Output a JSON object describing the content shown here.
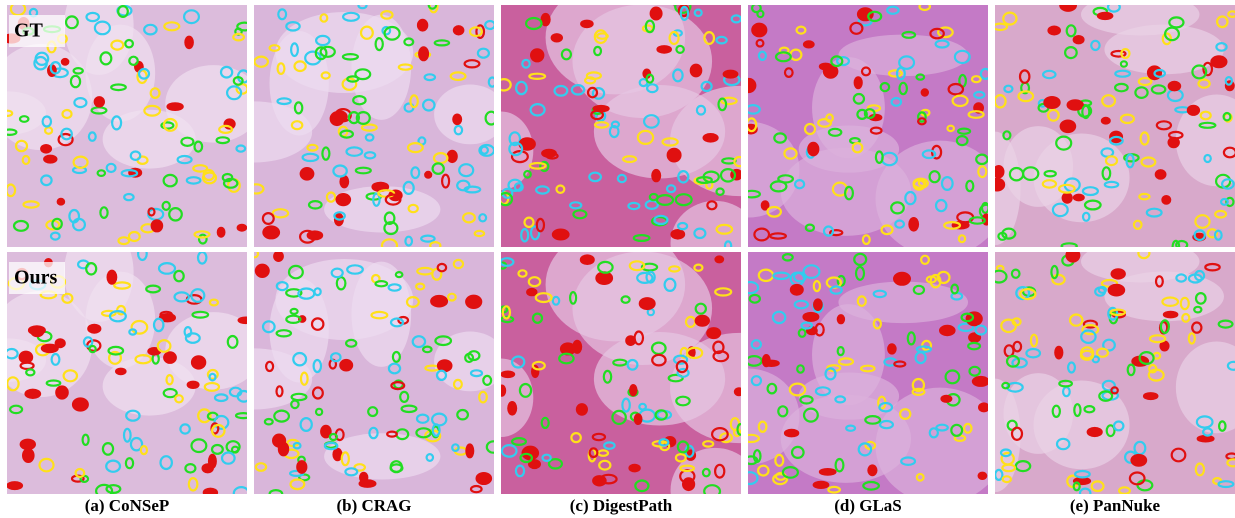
{
  "row_labels": [
    "GT",
    "Ours"
  ],
  "columns": [
    {
      "caption": "(a) CoNSeP"
    },
    {
      "caption": "(b) CRAG"
    },
    {
      "caption": "(c) DigestPath"
    },
    {
      "caption": "(d) GLaS"
    },
    {
      "caption": "(e) PanNuke"
    }
  ]
}
